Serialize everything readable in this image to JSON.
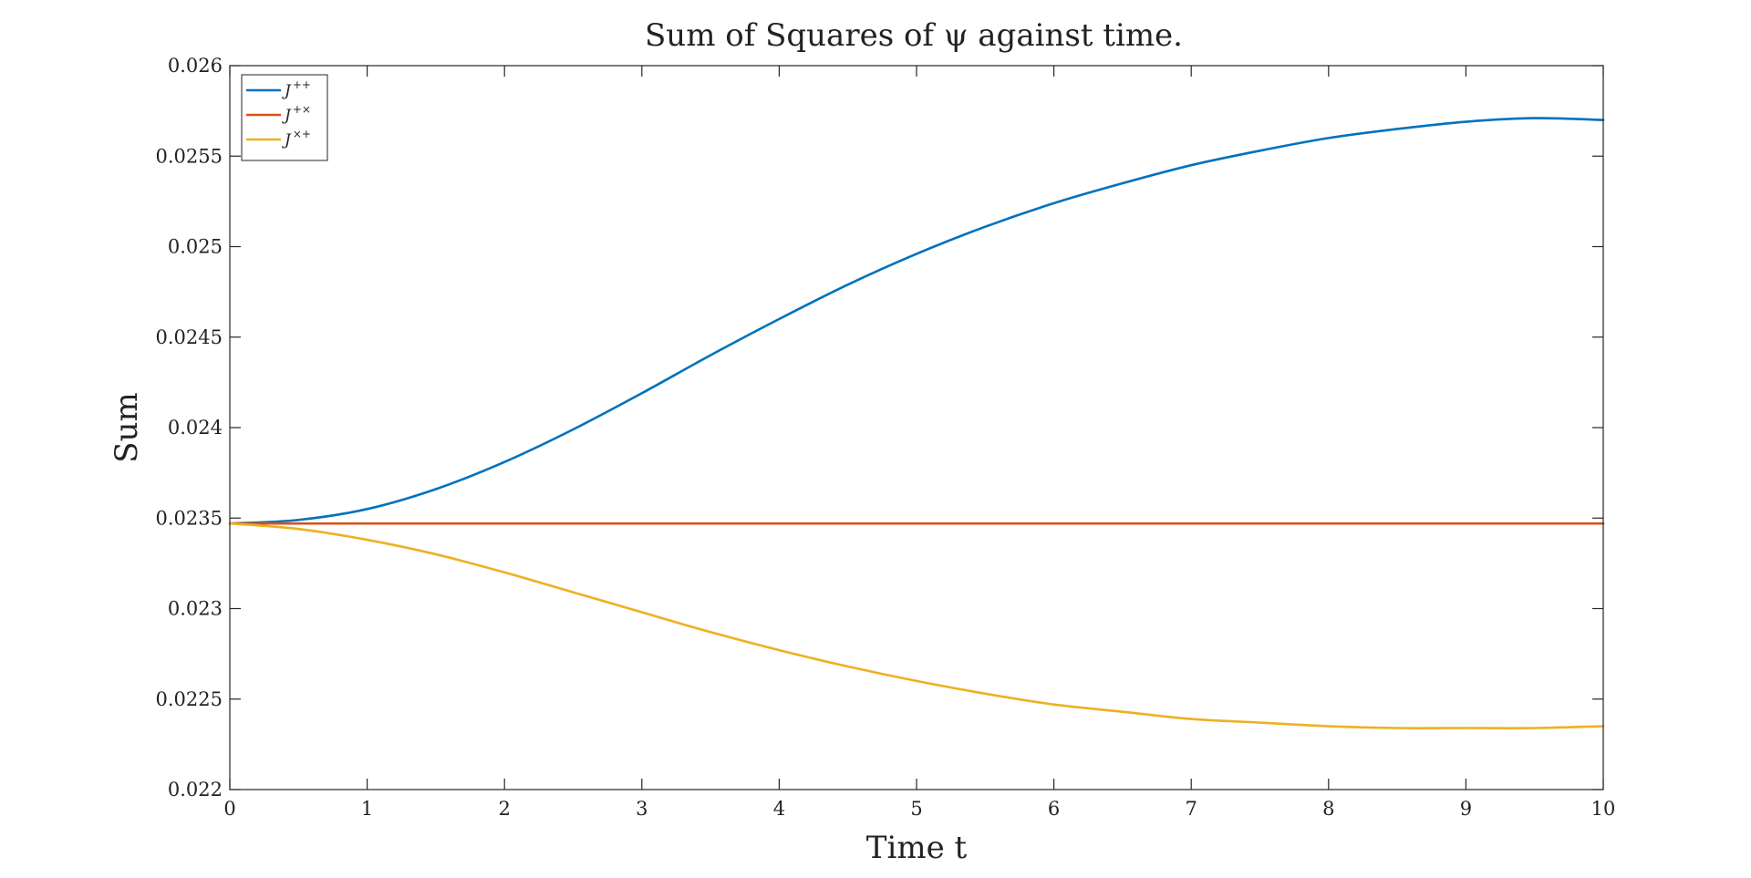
{
  "chart_data": {
    "type": "line",
    "title": "Sum of Squares of ψ against time.",
    "xlabel": "Time t",
    "ylabel": "Sum",
    "xlim": [
      0,
      10
    ],
    "ylim": [
      0.022,
      0.026
    ],
    "xticks": [
      0,
      1,
      2,
      3,
      4,
      5,
      6,
      7,
      8,
      9,
      10
    ],
    "xtick_labels": [
      "0",
      "1",
      "2",
      "3",
      "4",
      "5",
      "6",
      "7",
      "8",
      "9",
      "10"
    ],
    "yticks": [
      0.022,
      0.0225,
      0.023,
      0.0235,
      0.024,
      0.0245,
      0.025,
      0.0255,
      0.026
    ],
    "ytick_labels": [
      "0.022",
      "0.0225",
      "0.023",
      "0.0235",
      "0.024",
      "0.0245",
      "0.025",
      "0.0255",
      "0.026"
    ],
    "grid": false,
    "legend_position": "top-left",
    "series": [
      {
        "name": "J++",
        "legend_base": "J",
        "legend_sup": "++",
        "color": "#0072BD",
        "x": [
          0,
          0.5,
          1,
          1.5,
          2,
          2.5,
          3,
          3.5,
          4,
          4.5,
          5,
          5.5,
          6,
          6.5,
          7,
          7.5,
          8,
          8.5,
          9,
          9.5,
          10
        ],
        "y": [
          0.02347,
          0.02349,
          0.02355,
          0.02366,
          0.02381,
          0.02399,
          0.02419,
          0.0244,
          0.0246,
          0.02479,
          0.02496,
          0.02511,
          0.02524,
          0.02535,
          0.02545,
          0.02553,
          0.0256,
          0.02565,
          0.02569,
          0.02571,
          0.0257
        ]
      },
      {
        "name": "J+×",
        "legend_base": "J",
        "legend_sup": "+×",
        "color": "#D95319",
        "x": [
          0,
          10
        ],
        "y": [
          0.02347,
          0.02347
        ]
      },
      {
        "name": "J×+",
        "legend_base": "J",
        "legend_sup": "×+",
        "color": "#EDB120",
        "x": [
          0,
          0.5,
          1,
          1.5,
          2,
          2.5,
          3,
          3.5,
          4,
          4.5,
          5,
          5.5,
          6,
          6.5,
          7,
          7.5,
          8,
          8.5,
          9,
          9.5,
          10
        ],
        "y": [
          0.02347,
          0.02344,
          0.02338,
          0.0233,
          0.0232,
          0.02309,
          0.02298,
          0.02287,
          0.02277,
          0.02268,
          0.0226,
          0.02253,
          0.02247,
          0.02243,
          0.02239,
          0.02237,
          0.02235,
          0.02234,
          0.02234,
          0.02234,
          0.02235
        ]
      }
    ]
  }
}
